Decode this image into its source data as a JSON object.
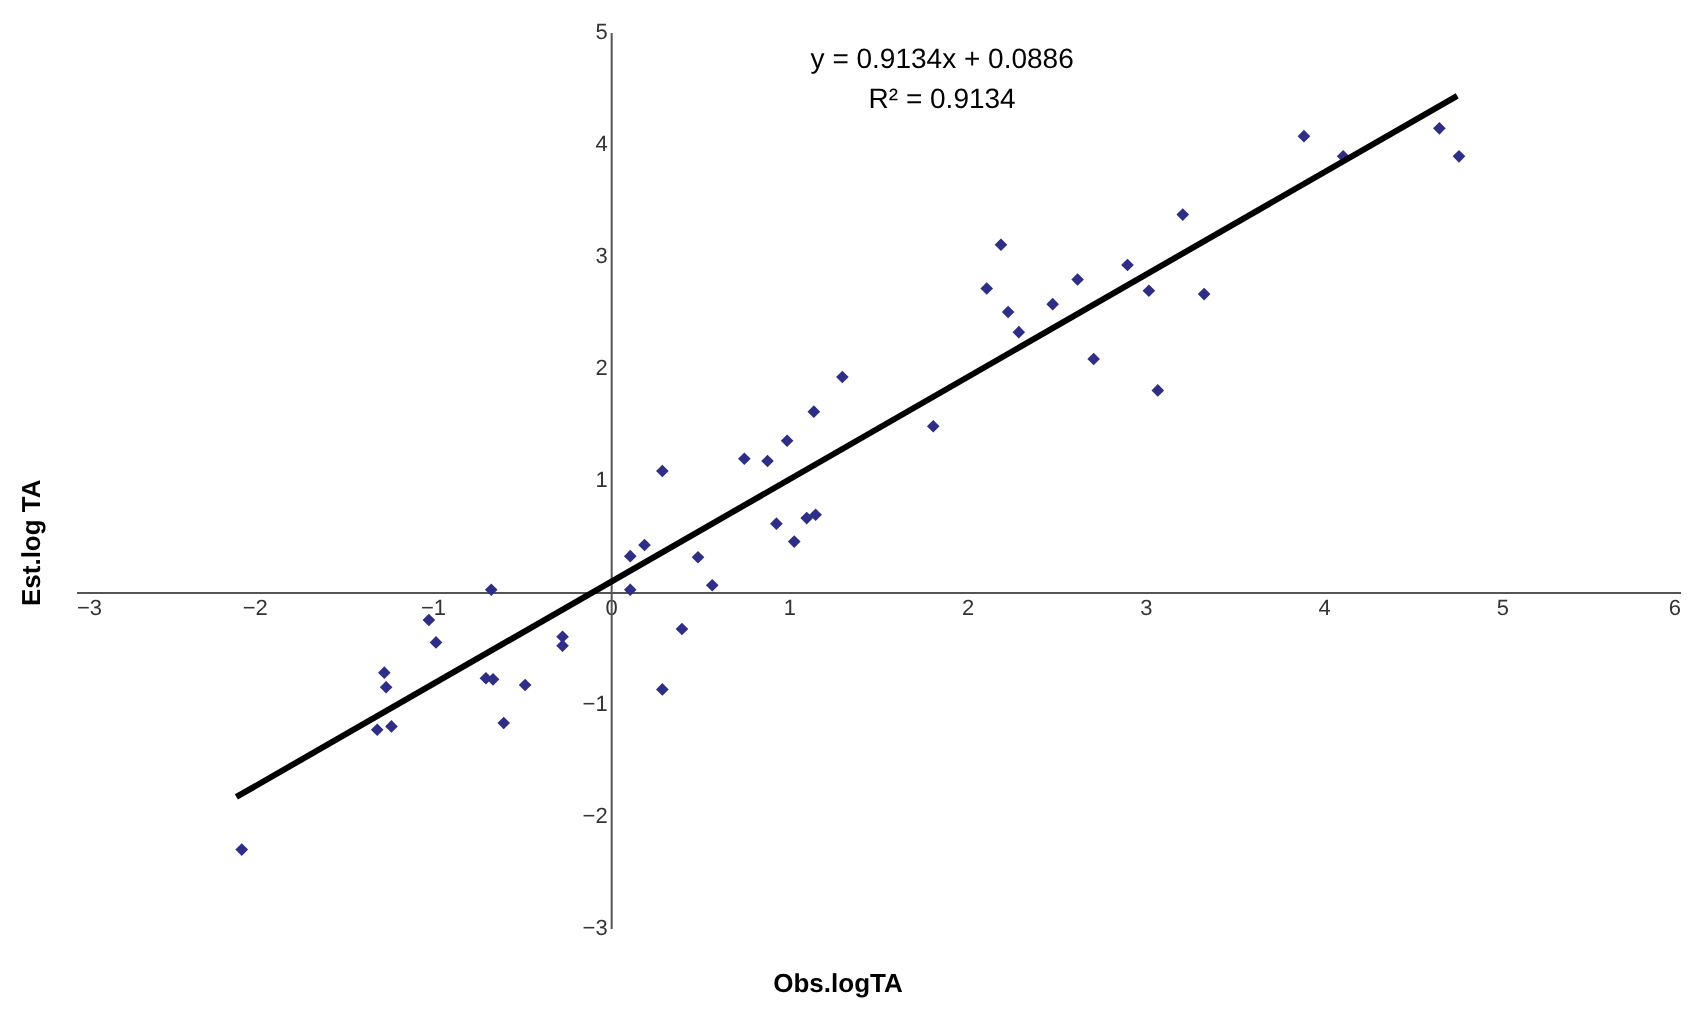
{
  "chart_data": {
    "type": "scatter",
    "xlabel": "Obs.logTA",
    "ylabel": "Est.log TA",
    "annotations": [
      "y = 0.9134x + 0.0886",
      "R² = 0.9134"
    ],
    "xlim": [
      -3,
      6
    ],
    "xticks": [
      -3,
      -2,
      -1,
      0,
      1,
      2,
      3,
      4,
      5,
      6
    ],
    "ylim": [
      -3,
      5
    ],
    "yticks": [
      -3,
      -2,
      -1,
      1,
      2,
      3,
      4,
      5
    ],
    "grid": false,
    "series": [
      {
        "color": "#2e2e86",
        "marker": "diamond",
        "x": [
          -2.07,
          -0.67,
          -1.02,
          -0.98,
          -1.27,
          -1.26,
          -1.31,
          -1.23,
          -0.7,
          -0.66,
          -0.48,
          -0.6,
          -0.27,
          -0.27,
          0.29,
          0.11,
          0.11,
          0.19,
          0.29,
          0.49,
          0.57,
          0.4,
          0.75,
          0.88,
          0.99,
          1.14,
          1.3,
          0.93,
          1.03,
          1.1,
          1.15,
          1.81,
          2.23,
          2.29,
          3.89,
          4.11,
          4.65,
          4.76,
          3.21,
          2.19,
          2.11,
          2.48,
          2.62,
          2.9,
          3.02,
          3.33,
          2.71,
          3.07
        ],
        "values": [
          -2.3,
          0.02,
          -0.25,
          -0.45,
          -0.72,
          -0.85,
          -1.23,
          -1.2,
          -0.77,
          -0.78,
          -0.83,
          -1.17,
          -0.4,
          -0.48,
          -0.87,
          0.02,
          0.32,
          0.42,
          1.08,
          0.31,
          0.06,
          -0.33,
          1.19,
          1.17,
          1.35,
          1.61,
          1.92,
          0.61,
          0.45,
          0.66,
          0.69,
          1.48,
          2.5,
          2.32,
          4.07,
          3.89,
          4.14,
          3.89,
          3.37,
          3.1,
          2.71,
          2.57,
          2.79,
          2.92,
          2.69,
          2.66,
          2.08,
          1.8
        ]
      },
      {
        "type": "line",
        "color": "#000000",
        "line_style": "solid",
        "marker": "none",
        "x": [
          -2.1,
          4.75
        ],
        "values": [
          -1.83,
          4.43
        ]
      }
    ]
  }
}
